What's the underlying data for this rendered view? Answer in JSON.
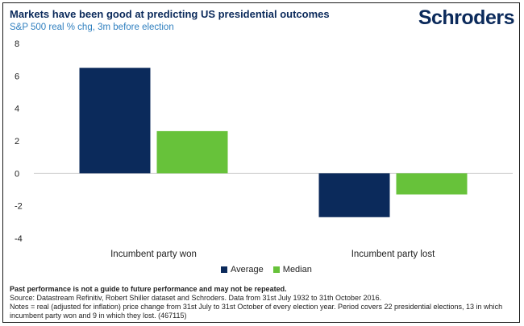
{
  "header": {
    "title": "Markets have been good at predicting US presidential outcomes",
    "subtitle": "S&P 500 real % chg, 3m before election",
    "logo": "Schroders"
  },
  "chart_data": {
    "type": "bar",
    "categories": [
      "Incumbent party won",
      "Incumbent party lost"
    ],
    "series": [
      {
        "name": "Average",
        "values": [
          6.5,
          -2.7
        ],
        "color": "#0b2a5b"
      },
      {
        "name": "Median",
        "values": [
          2.6,
          -1.3
        ],
        "color": "#67c23a"
      }
    ],
    "ylim": [
      -4,
      8
    ],
    "yticks": [
      8,
      6,
      4,
      2,
      0,
      -2,
      -4
    ],
    "ytick_labels": [
      "8",
      "6",
      "4",
      "2",
      "0",
      "-2",
      "-4"
    ],
    "legend_position": "bottom-center",
    "grid": false
  },
  "footer": {
    "disclaimer": "Past performance is not a guide to future performance and may not be repeated.",
    "source": "Source: Datastream Refinitiv, Robert Shiller dataset and Schroders. Data from 31st July 1932 to 31th October 2016.",
    "notes": "Notes = real (adjusted for inflation) price change from 31st July to 31st October of every election year. Period covers 22 presidential elections, 13 in which incumbent party won and 9 in which they lost. (467115)"
  }
}
